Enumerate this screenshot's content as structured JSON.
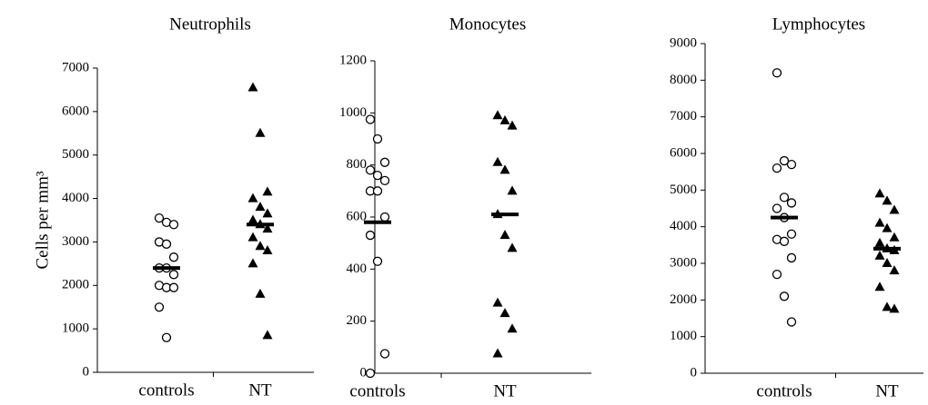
{
  "chart_data": [
    {
      "type": "strip",
      "title": "Neutrophils",
      "ylabel": "Cells per mm³",
      "categories": [
        "controls",
        "NT"
      ],
      "markers": [
        "circle",
        "triangle"
      ],
      "color": "#000000",
      "points": [
        [
          3550,
          3450,
          3400,
          3000,
          2950,
          2650,
          2400,
          2400,
          2250,
          2000,
          1950,
          1950,
          1500,
          800
        ],
        [
          6550,
          5500,
          4150,
          4000,
          3800,
          3650,
          3500,
          3400,
          3300,
          3100,
          2900,
          2800,
          2500,
          1800,
          850
        ]
      ],
      "means": [
        2400,
        3400
      ],
      "ylim": [
        0,
        7000
      ],
      "yticks": [
        0,
        1000,
        2000,
        3000,
        4000,
        5000,
        6000,
        7000
      ]
    },
    {
      "type": "strip",
      "title": "Monocytes",
      "categories": [
        "controls",
        "NT"
      ],
      "markers": [
        "circle",
        "triangle"
      ],
      "color": "#000000",
      "points": [
        [
          975,
          900,
          810,
          780,
          760,
          740,
          700,
          700,
          600,
          530,
          430,
          75,
          0
        ],
        [
          990,
          970,
          950,
          810,
          780,
          700,
          610,
          530,
          480,
          270,
          230,
          170,
          75
        ]
      ],
      "means": [
        580,
        610
      ],
      "ylim": [
        0,
        1200
      ],
      "yticks": [
        0,
        200,
        400,
        600,
        800,
        1000,
        1200
      ]
    },
    {
      "type": "strip",
      "title": "Lymphocytes",
      "categories": [
        "controls",
        "NT"
      ],
      "markers": [
        "circle",
        "triangle"
      ],
      "color": "#000000",
      "points": [
        [
          8200,
          5800,
          5700,
          5600,
          4800,
          4650,
          4500,
          4250,
          3800,
          3650,
          3600,
          3150,
          2700,
          2100,
          1400
        ],
        [
          4900,
          4700,
          4450,
          4100,
          3950,
          3700,
          3550,
          3400,
          3350,
          3200,
          3000,
          2800,
          2350,
          1800,
          1750
        ]
      ],
      "means": [
        4250,
        3400
      ],
      "ylim": [
        0,
        9000
      ],
      "yticks": [
        0,
        1000,
        2000,
        3000,
        4000,
        5000,
        6000,
        7000,
        8000,
        9000
      ]
    }
  ]
}
